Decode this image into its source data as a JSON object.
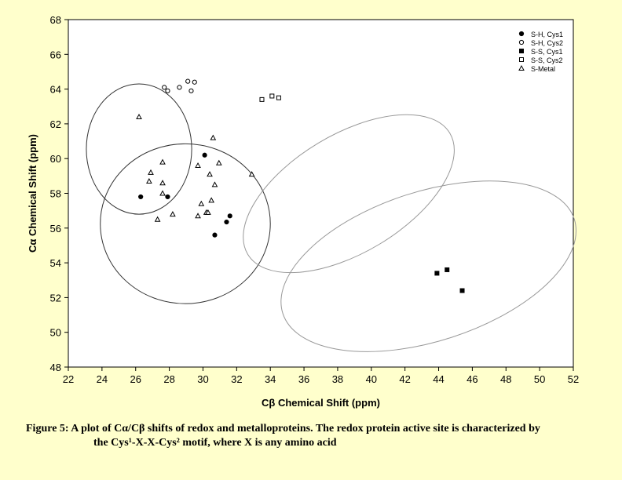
{
  "chart_data": {
    "type": "scatter",
    "xlabel": "Cβ Chemical Shift (ppm)",
    "ylabel": "Cα Chemical Shift (ppm)",
    "xlim": [
      22,
      52
    ],
    "ylim": [
      48,
      68
    ],
    "xticks": [
      22,
      24,
      26,
      28,
      30,
      32,
      34,
      36,
      38,
      40,
      42,
      44,
      46,
      48,
      50,
      52
    ],
    "yticks": [
      48,
      50,
      52,
      54,
      56,
      58,
      60,
      62,
      64,
      66,
      68
    ],
    "grid": false,
    "legend_position": "top-right",
    "series": [
      {
        "name": "S-H, Cys1",
        "marker": "filled-circle",
        "points": [
          [
            26.3,
            57.8
          ],
          [
            27.9,
            57.8
          ],
          [
            30.1,
            60.2
          ],
          [
            31.6,
            56.7
          ],
          [
            31.4,
            56.35
          ],
          [
            30.7,
            55.6
          ]
        ]
      },
      {
        "name": "S-H, Cys2",
        "marker": "open-circle",
        "points": [
          [
            27.7,
            64.1
          ],
          [
            27.9,
            63.9
          ],
          [
            28.6,
            64.1
          ],
          [
            29.1,
            64.45
          ],
          [
            29.5,
            64.4
          ],
          [
            29.3,
            63.9
          ]
        ]
      },
      {
        "name": "S-S, Cys1",
        "marker": "filled-square",
        "points": [
          [
            43.9,
            53.4
          ],
          [
            44.5,
            53.6
          ],
          [
            45.4,
            52.4
          ]
        ]
      },
      {
        "name": "S-S, Cys2",
        "marker": "open-square",
        "points": [
          [
            33.5,
            63.4
          ],
          [
            34.1,
            63.6
          ],
          [
            34.5,
            63.5
          ]
        ]
      },
      {
        "name": "S-Metal",
        "marker": "open-triangle",
        "points": [
          [
            26.2,
            62.4
          ],
          [
            30.6,
            61.2
          ],
          [
            27.6,
            59.8
          ],
          [
            29.7,
            59.6
          ],
          [
            30.95,
            59.75
          ],
          [
            26.9,
            59.2
          ],
          [
            30.4,
            59.1
          ],
          [
            32.9,
            59.1
          ],
          [
            26.8,
            58.7
          ],
          [
            27.6,
            58.6
          ],
          [
            30.7,
            58.5
          ],
          [
            27.6,
            58.0
          ],
          [
            30.5,
            57.6
          ],
          [
            29.9,
            57.4
          ],
          [
            28.2,
            56.8
          ],
          [
            30.2,
            56.9
          ],
          [
            30.3,
            56.9
          ],
          [
            29.7,
            56.7
          ],
          [
            27.3,
            56.5
          ]
        ]
      }
    ],
    "ellipses": [
      {
        "cx": 26.2,
        "cy": 60.55,
        "rx": 3.13,
        "ry": 3.75,
        "angle": 0,
        "color": "#333333"
      },
      {
        "cx": 28.95,
        "cy": 56.25,
        "rx": 5.05,
        "ry": 4.6,
        "angle": 0,
        "color": "#333333"
      },
      {
        "cx": 38.66,
        "cy": 57.98,
        "rx": 7.0,
        "ry": 3.4,
        "angle": -31,
        "color": "#999999"
      },
      {
        "cx": 43.4,
        "cy": 53.8,
        "rx": 9.1,
        "ry": 4.3,
        "angle": -18,
        "color": "#999999"
      }
    ]
  },
  "caption": {
    "line1": "Figure 5:  A plot of Cα/Cβ shifts of redox and metalloproteins.  The redox protein active site is characterized by",
    "line2": "the Cys¹-X-X-Cys² motif, where X is any amino acid"
  }
}
